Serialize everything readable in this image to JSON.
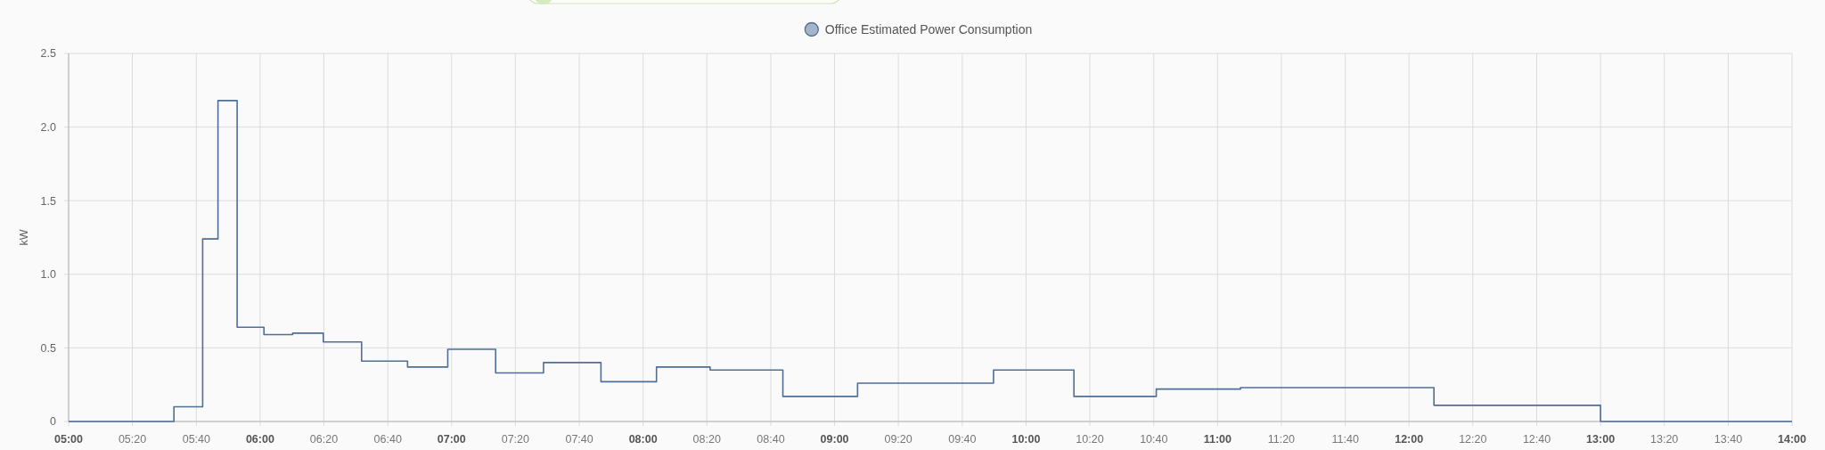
{
  "chart_data": {
    "type": "step",
    "ylabel": "kW",
    "legend": "top",
    "grid": true,
    "xlim": [
      5,
      14
    ],
    "ylim": [
      0,
      2.5
    ],
    "xticks": [
      {
        "value": 5,
        "label": "05:00"
      },
      {
        "value": 5.333,
        "label": "05:20"
      },
      {
        "value": 5.667,
        "label": "05:40"
      },
      {
        "value": 6,
        "label": "06:00"
      },
      {
        "value": 6.333,
        "label": "06:20"
      },
      {
        "value": 6.667,
        "label": "06:40"
      },
      {
        "value": 7,
        "label": "07:00"
      },
      {
        "value": 7.333,
        "label": "07:20"
      },
      {
        "value": 7.667,
        "label": "07:40"
      },
      {
        "value": 8,
        "label": "08:00"
      },
      {
        "value": 8.333,
        "label": "08:20"
      },
      {
        "value": 8.667,
        "label": "08:40"
      },
      {
        "value": 9,
        "label": "09:00"
      },
      {
        "value": 9.333,
        "label": "09:20"
      },
      {
        "value": 9.667,
        "label": "09:40"
      },
      {
        "value": 10,
        "label": "10:00"
      },
      {
        "value": 10.333,
        "label": "10:20"
      },
      {
        "value": 10.667,
        "label": "10:40"
      },
      {
        "value": 11,
        "label": "11:00"
      },
      {
        "value": 11.333,
        "label": "11:20"
      },
      {
        "value": 11.667,
        "label": "11:40"
      },
      {
        "value": 12,
        "label": "12:00"
      },
      {
        "value": 12.333,
        "label": "12:20"
      },
      {
        "value": 12.667,
        "label": "12:40"
      },
      {
        "value": 13,
        "label": "13:00"
      },
      {
        "value": 13.333,
        "label": "13:20"
      },
      {
        "value": 13.667,
        "label": "13:40"
      },
      {
        "value": 14,
        "label": "14:00"
      }
    ],
    "yticks": [
      0,
      0.5,
      {
        "value": 1,
        "label": "1.0"
      },
      1.5,
      {
        "value": 2,
        "label": "2.0"
      },
      2.5
    ],
    "x": [
      5,
      5.55,
      5.7,
      5.78,
      5.88,
      6.02,
      6.17,
      6.33,
      6.53,
      6.77,
      6.98,
      7.23,
      7.48,
      7.78,
      8.07,
      8.35,
      8.73,
      9.12,
      9.83,
      10.25,
      10.68,
      11.12,
      12.13,
      13,
      14
    ],
    "series": [
      {
        "name": "Office Estimated Power Consumption",
        "color": "#4f6f97",
        "values": [
          0,
          0.1,
          1.24,
          2.18,
          0.64,
          0.59,
          0.6,
          0.54,
          0.41,
          0.37,
          0.49,
          0.33,
          0.4,
          0.27,
          0.37,
          0.35,
          0.17,
          0.26,
          0.35,
          0.17,
          0.22,
          0.23,
          0.11,
          0,
          0
        ]
      }
    ]
  }
}
